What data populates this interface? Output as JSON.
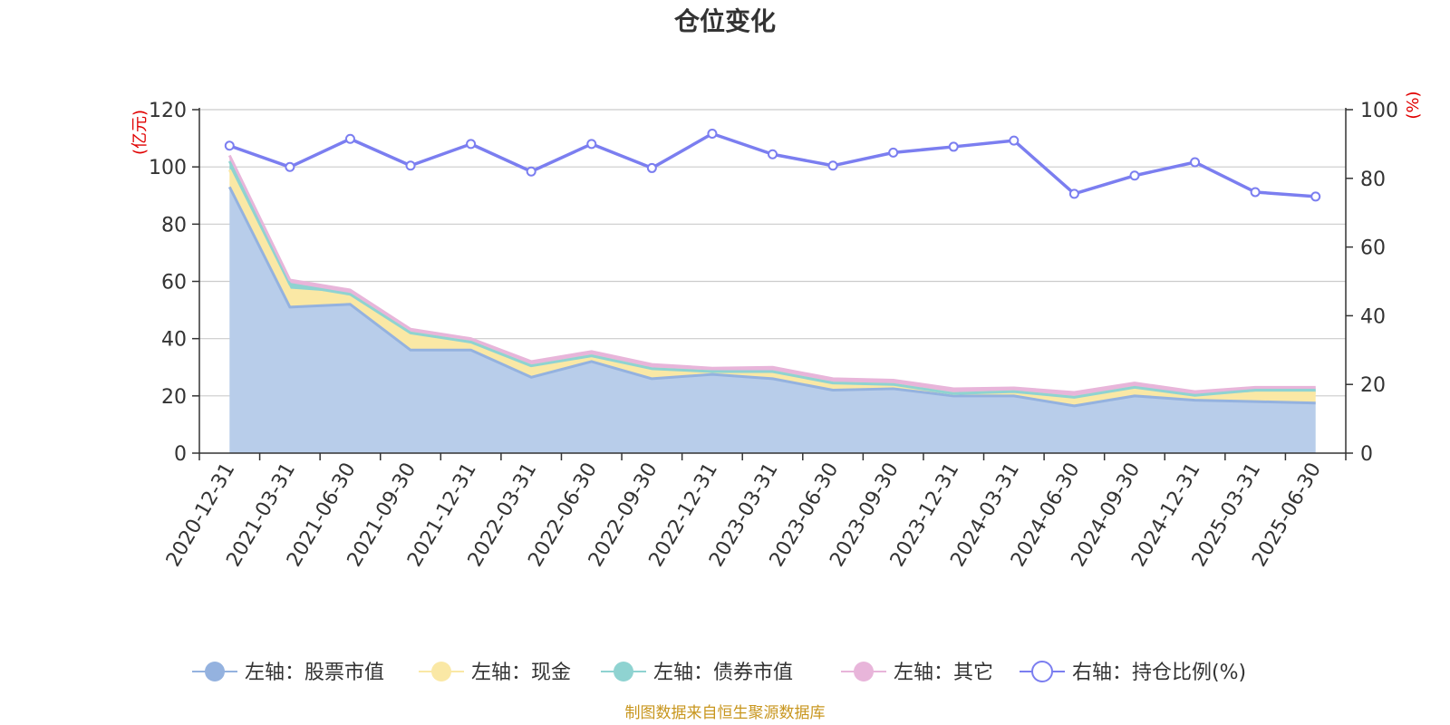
{
  "colors": {
    "stock_fill": "#b8cdea",
    "stock_line": "#94b2df",
    "cash": "#fae8a5",
    "bond": "#8fd3d1",
    "other": "#e8b5da",
    "ratio": "#7b7ef0",
    "grid": "#cccccc",
    "axis": "#333333",
    "unit_text": "#e00000",
    "source_text": "#c8961e"
  },
  "chart_data": {
    "type": "area",
    "title": "仓位变化",
    "left_axis": {
      "unit": "(亿元)",
      "ylim": [
        0,
        120
      ],
      "ticks": [
        "0",
        "20",
        "40",
        "60",
        "80",
        "100",
        "120"
      ]
    },
    "right_axis": {
      "unit": "(%)",
      "ylim": [
        0,
        100
      ],
      "ticks": [
        "0",
        "20",
        "40",
        "60",
        "80",
        "100"
      ]
    },
    "grid": true,
    "legend_position": "bottom",
    "categories": [
      "2020-12-31",
      "2021-03-31",
      "2021-06-30",
      "2021-09-30",
      "2021-12-31",
      "2022-03-31",
      "2022-06-30",
      "2022-09-30",
      "2022-12-31",
      "2023-03-31",
      "2023-06-30",
      "2023-09-30",
      "2023-12-31",
      "2024-03-31",
      "2024-06-30",
      "2024-09-30",
      "2024-12-31",
      "2025-03-31",
      "2025-06-30"
    ],
    "series": [
      {
        "name": "左轴：股票市值",
        "axis": "left",
        "stacked": true,
        "values": [
          93,
          51,
          52,
          36,
          36,
          26.5,
          32,
          26,
          27.5,
          26,
          22,
          22.5,
          20,
          20,
          16.5,
          20,
          18.5,
          18,
          17.5
        ]
      },
      {
        "name": "左轴：现金",
        "axis": "left",
        "stacked": true,
        "values": [
          6,
          6,
          3.5,
          6,
          2.8,
          4,
          2,
          3.5,
          1,
          2.5,
          2.5,
          1.5,
          0.8,
          1.5,
          3,
          3,
          1.2,
          3,
          3.5
        ]
      },
      {
        "name": "左轴：债券市值",
        "axis": "left",
        "stacked": true,
        "values": [
          3,
          2,
          0,
          0,
          0,
          0,
          0,
          0,
          0,
          0,
          0,
          0,
          0,
          0,
          0,
          0,
          0.5,
          1,
          1
        ]
      },
      {
        "name": "左轴：其它",
        "axis": "left",
        "stacked": true,
        "values": [
          2,
          1.5,
          1.5,
          1.3,
          1.2,
          1.5,
          1.5,
          1.5,
          1.2,
          1.5,
          1.5,
          1.5,
          1.7,
          1.3,
          1.7,
          1.5,
          1.3,
          1,
          1
        ]
      },
      {
        "name": "右轴：持仓比例(%)",
        "axis": "right",
        "type": "line",
        "values": [
          89.5,
          83.3,
          91.5,
          83.7,
          90,
          82,
          90,
          83,
          93,
          87,
          83.7,
          87.5,
          89.2,
          91,
          75.5,
          80.8,
          84.7,
          76,
          74.7
        ]
      }
    ]
  },
  "source_note": "制图数据来自恒生聚源数据库"
}
